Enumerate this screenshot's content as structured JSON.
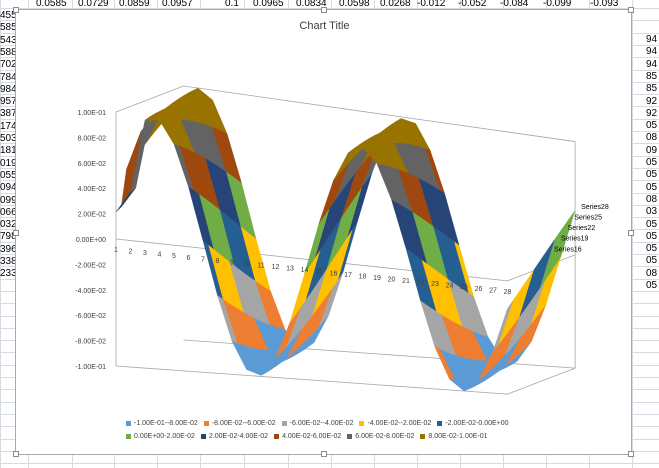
{
  "spreadsheet": {
    "top_row": [
      "0.0585",
      "0.0729",
      "0.0859",
      "0.0957",
      "0.1",
      "0.0965",
      "0.0834",
      "0.0598",
      "0.0268",
      "-0.012",
      "-0.052",
      "-0.084",
      "-0.099",
      "-0.093"
    ],
    "left_column": [
      "455",
      "585",
      "543",
      "588",
      "702",
      "784",
      "984",
      "957",
      "387",
      "174",
      "503",
      "181",
      "019",
      "055",
      "094",
      "099",
      "066",
      "032",
      "798",
      "396",
      "338",
      "233"
    ],
    "right_column": [
      "94",
      "94",
      "94",
      "85",
      "85",
      "92",
      "92",
      "05",
      "08",
      "09",
      "05",
      "05",
      "05",
      "08",
      "03",
      "05",
      "05",
      "05",
      "05",
      "08",
      "05"
    ]
  },
  "colors": {
    "grid": "#d6dbe3",
    "axis": "#a6a6a6",
    "text": "#404040"
  },
  "chart_data": {
    "type": "surface",
    "title": "Chart Title",
    "zlim": [
      -0.1,
      0.1
    ],
    "z_ticks": [
      "1.00E-01",
      "8.00E-02",
      "6.00E-02",
      "4.00E-02",
      "2.00E-02",
      "0.00E+00",
      "-2.00E-02",
      "-4.00E-02",
      "-6.00E-02",
      "-8.00E-02",
      "-1.00E-01"
    ],
    "x_categories": [
      "1",
      "2",
      "3",
      "4",
      "5",
      "6",
      "7",
      "8",
      "9",
      "10",
      "11",
      "12",
      "13",
      "14",
      "15",
      "16",
      "17",
      "18",
      "19",
      "20",
      "21",
      "22",
      "23",
      "24",
      "25",
      "26",
      "27",
      "28"
    ],
    "series_labels": [
      "Series28",
      "Series25",
      "Series22",
      "Series19",
      "Series16"
    ],
    "bands": [
      {
        "label": "-1.00E-01--8.00E-02",
        "color": "#5b9bd5"
      },
      {
        "label": "-8.00E-02--6.00E-02",
        "color": "#ed7d31"
      },
      {
        "label": "-6.00E-02--4.00E-02",
        "color": "#a5a5a5"
      },
      {
        "label": "-4.00E-02--2.00E-02",
        "color": "#ffc000"
      },
      {
        "label": "-2.00E-02-0.00E+00",
        "color": "#255e91"
      },
      {
        "label": "0.00E+00-2.00E-02",
        "color": "#70ad47"
      },
      {
        "label": "2.00E-02-4.00E-02",
        "color": "#264478"
      },
      {
        "label": "4.00E-02-6.00E-02",
        "color": "#9e480e"
      },
      {
        "label": "6.00E-02-8.00E-02",
        "color": "#636363"
      },
      {
        "label": "8.00E-02-1.00E-01",
        "color": "#997300"
      }
    ]
  }
}
